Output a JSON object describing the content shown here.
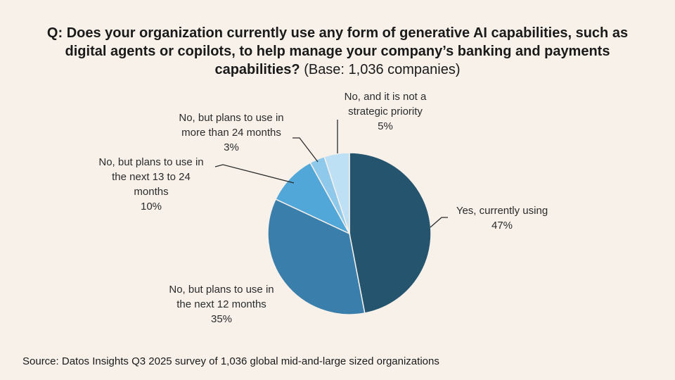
{
  "question": {
    "bold_text": "Q: Does your organization currently use any form of generative AI capabilities, such as digital agents or copilots, to help manage your company’s banking and payments capabilities?",
    "base_text": "(Base: 1,036 companies)"
  },
  "chart_data": {
    "type": "pie",
    "title": "Q: Does your organization currently use any form of generative AI capabilities, such as digital agents or copilots, to help manage your company’s banking and payments capabilities? (Base: 1,036 companies)",
    "unit": "%",
    "slices": [
      {
        "label_lines": [
          "Yes, currently using"
        ],
        "value": 47,
        "value_label": "47%",
        "color": "#25546f"
      },
      {
        "label_lines": [
          "No, but plans to use in",
          "the next 12 months"
        ],
        "value": 35,
        "value_label": "35%",
        "color": "#3a7fab"
      },
      {
        "label_lines": [
          "No, but plans to use in",
          "the next 13 to 24",
          "months"
        ],
        "value": 10,
        "value_label": "10%",
        "color": "#52a7d9"
      },
      {
        "label_lines": [
          "No, but plans to use in",
          "more than 24 months"
        ],
        "value": 3,
        "value_label": "3%",
        "color": "#8ec9ec"
      },
      {
        "label_lines": [
          "No, and it is not a",
          "strategic priority"
        ],
        "value": 5,
        "value_label": "5%",
        "color": "#bde0f4"
      }
    ]
  },
  "footer": {
    "source": "Source: Datos Insights Q3 2025 survey of 1,036 global mid-and-large sized organizations"
  }
}
